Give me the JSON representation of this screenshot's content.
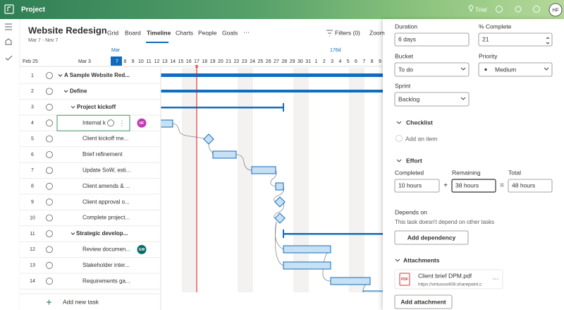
{
  "app": {
    "name": "Project",
    "trial": "Trial",
    "avatar": "HF"
  },
  "header": {
    "title": "Website Redesign",
    "dates": "Mar 7 - Nov 7",
    "tabs": [
      "Grid",
      "Board",
      "Timeline",
      "Charts",
      "People",
      "Goals"
    ],
    "more": "···",
    "filters": "Filters (0)",
    "zoom": "Zoom"
  },
  "timeline": {
    "weeks": [
      "Feb 25",
      "Mar 3"
    ],
    "month": "Mar",
    "duration": "176d",
    "days": [
      "7",
      "8",
      "9",
      "10",
      "11",
      "12",
      "13",
      "14",
      "15",
      "16",
      "17",
      "18",
      "19",
      "20",
      "21",
      "22",
      "23",
      "24",
      "25",
      "26",
      "27",
      "28",
      "29",
      "30",
      "31",
      "1",
      "2",
      "3",
      "4",
      "5",
      "6",
      "7",
      "8",
      "9"
    ]
  },
  "tasks": [
    {
      "number": "1",
      "name": "A Sample Website Red..."
    },
    {
      "number": "2",
      "name": "Define"
    },
    {
      "number": "3",
      "name": "Project kickoff"
    },
    {
      "number": "4",
      "name": "Internal k",
      "avatar": "HF"
    },
    {
      "number": "5",
      "name": "Client kickoff me..."
    },
    {
      "number": "6",
      "name": "Brief refinement"
    },
    {
      "number": "7",
      "name": "Update SoW, esti..."
    },
    {
      "number": "8",
      "name": "Client amends & ..."
    },
    {
      "number": "9",
      "name": "Client approval o..."
    },
    {
      "number": "10",
      "name": "Complete project..."
    },
    {
      "number": "11",
      "name": "Strategic develop..."
    },
    {
      "number": "12",
      "name": "Review documen...",
      "avatar": "GW"
    },
    {
      "number": "13",
      "name": "Stakeholder inter..."
    },
    {
      "number": "14",
      "name": "Requirements ga..."
    }
  ],
  "add_task": "Add new task",
  "details": {
    "duration": {
      "label": "Duration",
      "value": "6 days"
    },
    "complete": {
      "label": "% Complete",
      "value": "21"
    },
    "bucket": {
      "label": "Bucket",
      "value": "To do"
    },
    "priority": {
      "label": "Priority",
      "value": "Medium"
    },
    "sprint": {
      "label": "Sprint",
      "value": "Backlog"
    },
    "checklist": {
      "title": "Checklist",
      "add": "Add an item"
    },
    "effort": {
      "title": "Effort",
      "completed_label": "Completed",
      "completed": "10 hours",
      "plus": "+",
      "remaining_label": "Remaining",
      "remaining": "38 hours",
      "equals": "=",
      "total_label": "Total",
      "total": "48 hours"
    },
    "depends": {
      "title": "Depends on",
      "text": "This task doesn't depend on other tasks",
      "button": "Add dependency"
    },
    "attachments": {
      "title": "Attachments",
      "file": {
        "icon": "PDF",
        "name": "Client brief DPM.pdf",
        "url": "https://virtuoso408.sharepoint.c",
        "more": "···"
      },
      "button": "Add attachment"
    }
  }
}
